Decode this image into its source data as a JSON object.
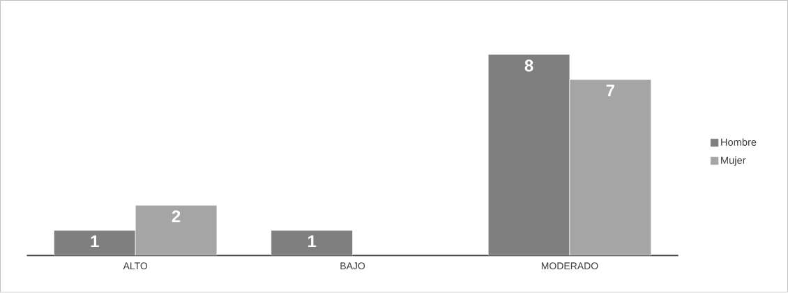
{
  "chart_data": {
    "type": "bar",
    "categories": [
      "ALTO",
      "BAJO",
      "MODERADO"
    ],
    "series": [
      {
        "name": "Hombre",
        "color": "#7f7f7f",
        "values": [
          1,
          1,
          8
        ]
      },
      {
        "name": "Mujer",
        "color": "#a5a5a5",
        "values": [
          2,
          null,
          7
        ]
      }
    ],
    "data_labels": true,
    "legend": "right"
  }
}
